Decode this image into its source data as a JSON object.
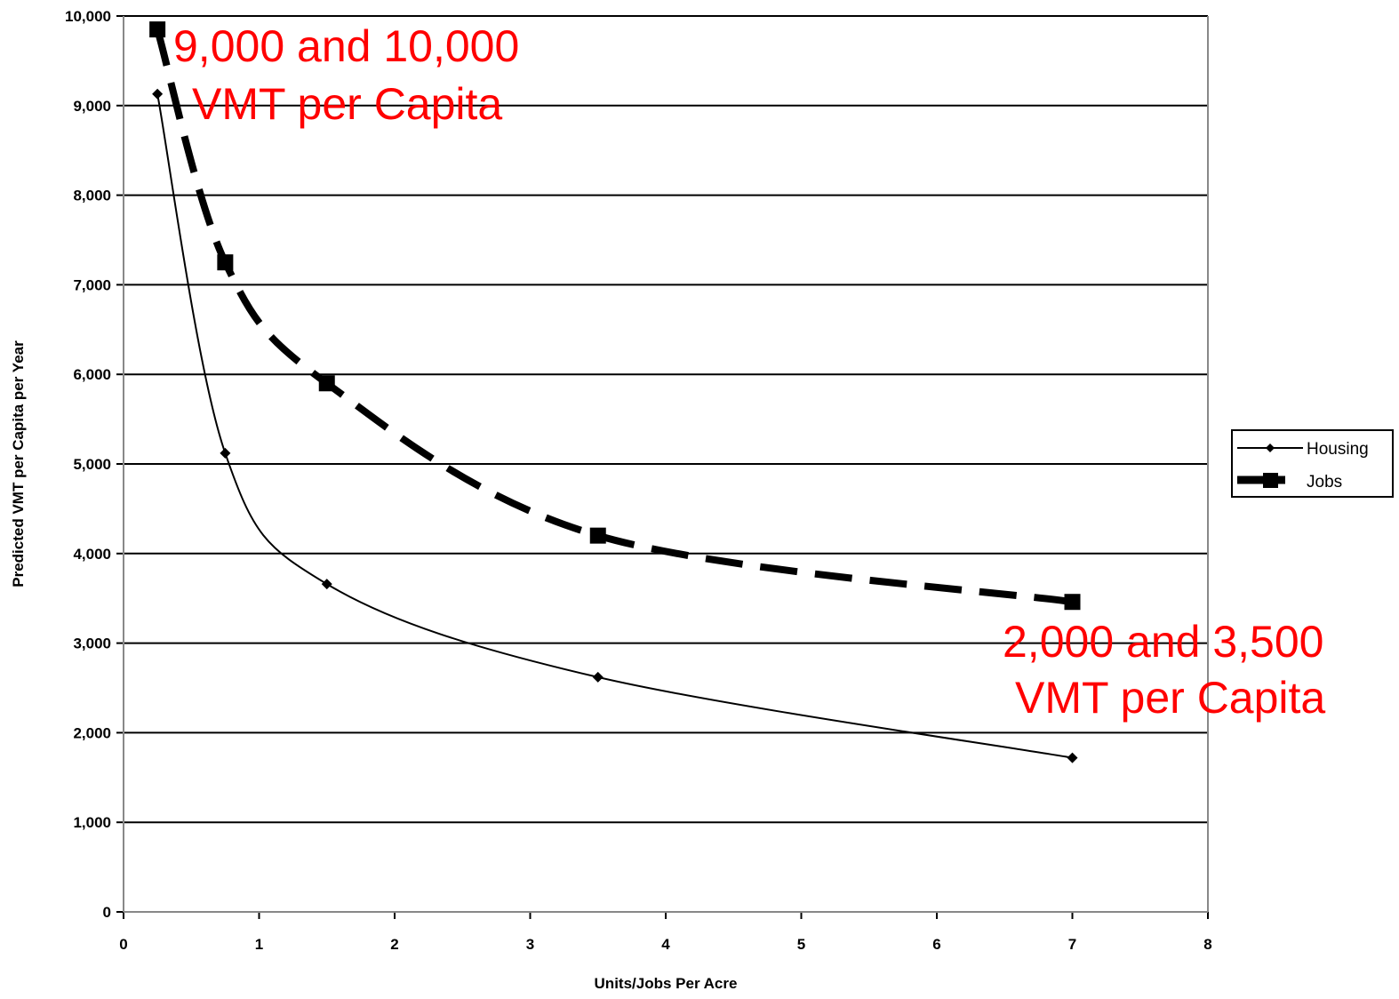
{
  "chart_data": {
    "type": "line",
    "title": "",
    "xlabel": "Units/Jobs Per Acre",
    "ylabel": "Predicted VMT per Capita per Year",
    "xlim": [
      0,
      8
    ],
    "ylim": [
      0,
      10000
    ],
    "xticks": [
      "0",
      "1",
      "2",
      "3",
      "4",
      "5",
      "6",
      "7",
      "8"
    ],
    "yticks": [
      "0",
      "1,000",
      "2,000",
      "3,000",
      "4,000",
      "5,000",
      "6,000",
      "7,000",
      "8,000",
      "9,000",
      "10,000"
    ],
    "grid": "horizontal",
    "legend_position": "right",
    "series": [
      {
        "name": "Housing",
        "style": "solid-thin-diamond",
        "color": "#000000",
        "x": [
          0.25,
          0.75,
          1.5,
          3.5,
          7
        ],
        "y": [
          9130,
          5120,
          3660,
          2620,
          1720
        ]
      },
      {
        "name": "Jobs",
        "style": "dashed-thick-square",
        "color": "#000000",
        "x": [
          0.25,
          0.75,
          1.5,
          3.5,
          7
        ],
        "y": [
          9850,
          7250,
          5900,
          4200,
          3460
        ]
      }
    ],
    "annotations": [
      {
        "line1": "9,000 and 10,000",
        "line2": "VMT per Capita",
        "color": "#ff0000"
      },
      {
        "line1": "2,000 and 3,500",
        "line2": "VMT per Capita",
        "color": "#ff0000"
      }
    ]
  }
}
